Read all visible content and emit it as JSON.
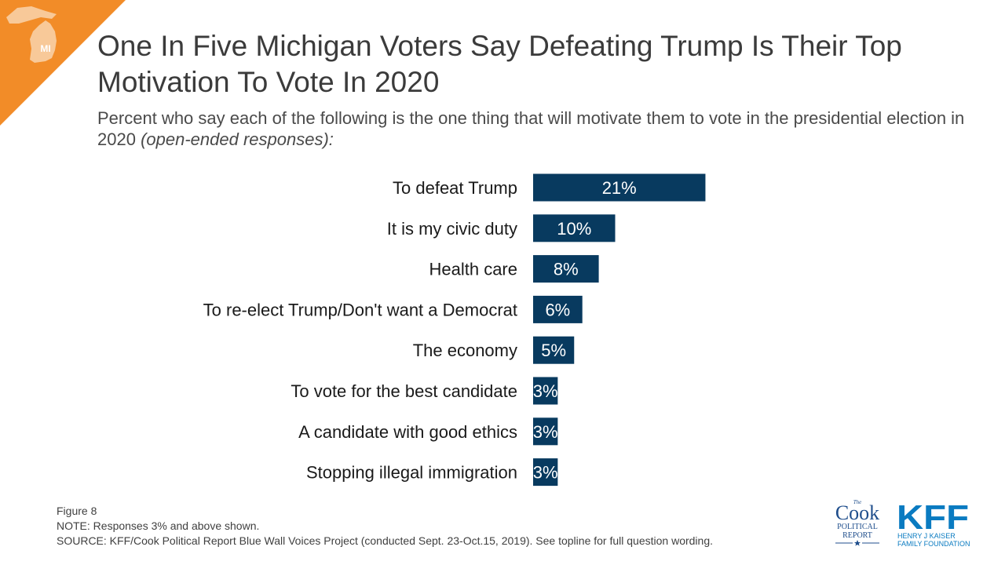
{
  "header": {
    "state_abbrev": "MI",
    "accent_color": "#f28c28"
  },
  "chart_data": {
    "type": "bar",
    "orientation": "horizontal",
    "title": "One In Five Michigan Voters Say Defeating Trump Is Their Top Motivation To Vote In 2020",
    "subtitle": "Percent who say each of the following is the one thing that will motivate them to vote in the presidential election in 2020",
    "subtitle_note": "(open-ended responses):",
    "categories": [
      "To defeat Trump",
      "It is my civic duty",
      "Health care",
      "To re-elect Trump/Don't want a Democrat",
      "The economy",
      "To vote for the best candidate",
      "A candidate with good ethics",
      "Stopping illegal immigration"
    ],
    "values": [
      21,
      10,
      8,
      6,
      5,
      3,
      3,
      3
    ],
    "value_labels": [
      "21%",
      "10%",
      "8%",
      "6%",
      "5%",
      "3%",
      "3%",
      "3%"
    ],
    "xlim": [
      0,
      100
    ],
    "bar_color": "#083a5f",
    "grid": false,
    "legend": "none"
  },
  "footer": {
    "figure": "Figure 8",
    "note": "NOTE: Responses 3% and above shown.",
    "source": "SOURCE: KFF/Cook Political Report Blue Wall Voices Project (conducted Sept. 23-Oct.15, 2019). See topline for full question wording."
  },
  "logos": {
    "cook": {
      "the": "The",
      "name": "Cook",
      "line1": "POLITICAL",
      "line2": "REPORT",
      "color": "#1f4e8c"
    },
    "kff": {
      "name": "KFF",
      "line1": "HENRY J KAISER",
      "line2": "FAMILY FOUNDATION",
      "color": "#0a7bc1"
    }
  }
}
